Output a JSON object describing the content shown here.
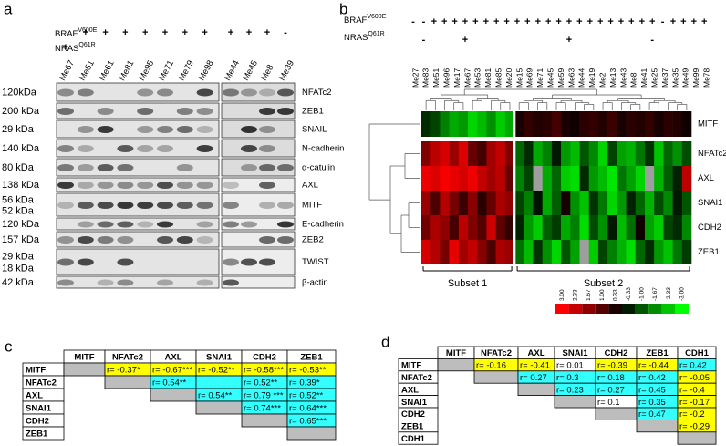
{
  "panel_a": {
    "label": "a",
    "braf": {
      "name": "BRAF",
      "sup": "V600E"
    },
    "nras": {
      "name": "NRAS",
      "sup": "Q61R"
    },
    "left_samples": [
      {
        "name": "Me67",
        "braf": null,
        "nras": "+"
      },
      {
        "name": "Me51",
        "braf": "+",
        "nras": null
      },
      {
        "name": "Me61",
        "braf": "+",
        "nras": null
      },
      {
        "name": "Me81",
        "braf": "+",
        "nras": null
      },
      {
        "name": "Me95",
        "braf": "+",
        "nras": null
      },
      {
        "name": "Me71",
        "braf": "+",
        "nras": null
      },
      {
        "name": "Me79",
        "braf": "+",
        "nras": null
      },
      {
        "name": "Me98",
        "braf": "+",
        "nras": null
      }
    ],
    "right_samples": [
      {
        "name": "Me44",
        "braf": "+",
        "nras": null
      },
      {
        "name": "Me45",
        "braf": "+",
        "nras": null
      },
      {
        "name": "Me8",
        "braf": "+",
        "nras": null
      },
      {
        "name": "Me39",
        "braf": "-",
        "nras": null
      }
    ],
    "rows": [
      {
        "kda": [
          "120kDa"
        ],
        "protein": "NFATc2"
      },
      {
        "kda": [
          "200 kDa"
        ],
        "protein": "ZEB1"
      },
      {
        "kda": [
          "29 kDa"
        ],
        "protein": "SNAIL"
      },
      {
        "kda": [
          "140 kDa"
        ],
        "protein": "N-cadherin"
      },
      {
        "kda": [
          "80 kDa"
        ],
        "protein": "α-catulin"
      },
      {
        "kda": [
          "138 kDa"
        ],
        "protein": "AXL"
      },
      {
        "kda": [
          "56 kDa",
          "52 kDa"
        ],
        "protein": "MITF"
      },
      {
        "kda": [
          "120 kDa"
        ],
        "protein": "E-cadherin"
      },
      {
        "kda": [
          "157 kDa"
        ],
        "protein": "ZEB2"
      },
      {
        "kda": [
          "29 kDa",
          "18 kDa"
        ],
        "protein": "TWIST"
      },
      {
        "kda": [
          "42 kDa"
        ],
        "protein": "β-actin"
      }
    ]
  },
  "panel_b": {
    "label": "b",
    "braf": {
      "name": "BRAF",
      "sup": "V600E"
    },
    "nras": {
      "name": "NRAS",
      "sup": "Q61R"
    },
    "samples": [
      {
        "name": "Me27",
        "braf": "-",
        "nras": null
      },
      {
        "name": "Me83",
        "braf": "-",
        "nras": "-"
      },
      {
        "name": "Me51",
        "braf": "+",
        "nras": null
      },
      {
        "name": "Me96",
        "braf": "+",
        "nras": null
      },
      {
        "name": "Me17",
        "braf": "+",
        "nras": null
      },
      {
        "name": "Me67",
        "braf": "+",
        "nras": "+"
      },
      {
        "name": "Me53",
        "braf": "+",
        "nras": null
      },
      {
        "name": "Me81",
        "braf": "+",
        "nras": null
      },
      {
        "name": "Me85",
        "braf": "+",
        "nras": null
      },
      {
        "name": "Me20",
        "braf": "+",
        "nras": null
      },
      {
        "name": "Me15",
        "braf": "+",
        "nras": null
      },
      {
        "name": "Me69",
        "braf": "+",
        "nras": null
      },
      {
        "name": "Me71",
        "braf": "+",
        "nras": null
      },
      {
        "name": "Me45",
        "braf": "+",
        "nras": null
      },
      {
        "name": "Me59",
        "braf": "+",
        "nras": null
      },
      {
        "name": "Me63",
        "braf": "+",
        "nras": "+"
      },
      {
        "name": "Me44",
        "braf": "+",
        "nras": null
      },
      {
        "name": "Me19",
        "braf": "+",
        "nras": null
      },
      {
        "name": "Me2",
        "braf": "+",
        "nras": null
      },
      {
        "name": "Me13",
        "braf": "+",
        "nras": null
      },
      {
        "name": "Me43",
        "braf": "+",
        "nras": null
      },
      {
        "name": "Me8",
        "braf": "+",
        "nras": null
      },
      {
        "name": "Me41",
        "braf": "+",
        "nras": null
      },
      {
        "name": "Me25",
        "braf": "+",
        "nras": "-"
      },
      {
        "name": "Me37",
        "braf": "-",
        "nras": null
      },
      {
        "name": "Me35",
        "braf": "+",
        "nras": null
      },
      {
        "name": "Me49",
        "braf": "+",
        "nras": null
      },
      {
        "name": "Me99",
        "braf": "+",
        "nras": null
      },
      {
        "name": "Me78",
        "braf": "+",
        "nras": null
      }
    ],
    "genes": [
      "MITF",
      "NFATc2",
      "AXL",
      "SNAI1",
      "CDH2",
      "ZEB1"
    ],
    "values": [
      [
        -0.5,
        -0.8,
        -1.5,
        -2,
        -1.8,
        -2.5,
        -2.2,
        -1.7,
        -2.4,
        -2,
        0.3,
        0.6,
        0.4,
        0.5,
        0.8,
        0.3,
        0.2,
        0.5,
        0.6,
        0.4,
        0.7,
        0.3,
        0.5,
        0.4,
        0.6,
        0.3,
        0.5,
        0.4,
        0.2
      ],
      [
        1.5,
        2.2,
        2.5,
        1.8,
        2.6,
        1.2,
        0.8,
        1.9,
        2.3,
        1.5,
        -1.2,
        -0.5,
        -2,
        -1.5,
        -0.3,
        -1.8,
        -2.2,
        -1,
        -1.6,
        -2.5,
        -0.8,
        -1.9,
        -2.1,
        -1.4,
        -0.6,
        -2.3,
        -1.2,
        -1.7,
        -0.9
      ],
      [
        2.8,
        2.6,
        2.9,
        2.7,
        2.5,
        2.8,
        2.3,
        1.9,
        2.2,
        1.2,
        -1.5,
        -0.8,
        null,
        -2,
        -1.2,
        -2.4,
        -2.6,
        -0.5,
        -1.8,
        -2.2,
        -2.7,
        -1.4,
        -1.9,
        -2.5,
        null,
        -2.1,
        -1.1,
        -0.4,
        2.2
      ],
      [
        1.8,
        0.9,
        2.1,
        1.4,
        0.7,
        1.6,
        0.5,
        1.2,
        2,
        1.7,
        -0.8,
        -1.5,
        -0.2,
        -2,
        -1.1,
        0.3,
        -1.7,
        -2.3,
        -0.6,
        -1.4,
        -2.5,
        -1.8,
        -0.4,
        -1.2,
        -2.1,
        -0.9,
        -1.6,
        -0.3,
        -1
      ],
      [
        1.3,
        2,
        1.7,
        0.8,
        2.2,
        1.5,
        1,
        2.4,
        1.1,
        0.6,
        -0.4,
        -1.8,
        -2.4,
        -1.1,
        -0.7,
        -2,
        -1.5,
        -2.6,
        -0.9,
        -1.7,
        -0.3,
        -2.2,
        -1.3,
        0.2,
        -1.9,
        -2.4,
        -0.8,
        -0.5,
        -1.6
      ],
      [
        2.5,
        2.1,
        1.4,
        2.7,
        1.9,
        2.3,
        1.6,
        0.9,
        2,
        1.8,
        -1.3,
        -2.2,
        -0.6,
        -1.7,
        -2.5,
        -1,
        -1.9,
        null,
        -2.4,
        -0.8,
        -1.5,
        -2.1,
        -2.6,
        -1.2,
        -0.5,
        -1.8,
        -2.3,
        -1.4,
        -0.7
      ]
    ],
    "subsets": [
      "Subset 1",
      "Subset 2"
    ],
    "scale": [
      {
        "value": 3,
        "label": "3.00"
      },
      {
        "value": 2.33,
        "label": "2.33"
      },
      {
        "value": 1.67,
        "label": "1.67"
      },
      {
        "value": 1,
        "label": "1.00"
      },
      {
        "value": 0.33,
        "label": "0.33"
      },
      {
        "value": -0.33,
        "label": "-0.33"
      },
      {
        "value": -1,
        "label": "-1.00"
      },
      {
        "value": -1.67,
        "label": "-1.67"
      },
      {
        "value": -2.33,
        "label": "-2.33"
      },
      {
        "value": -3,
        "label": "-3.00"
      }
    ]
  },
  "panel_c": {
    "label": "c",
    "columns": [
      "MITF",
      "NFATc2",
      "AXL",
      "SNAI1",
      "CDH2",
      "ZEB1"
    ],
    "rows": [
      {
        "name": "MITF",
        "cells": [
          {
            "text": "r= -0.37*",
            "highlight": "#ffff00"
          },
          {
            "text": "r= -0.67***",
            "highlight": "#ffff00"
          },
          {
            "text": "r= -0.52**",
            "highlight": "#ffff00"
          },
          {
            "text": "r= -0.58***",
            "highlight": "#ffff00"
          },
          {
            "text": "r= -0.53**",
            "highlight": "#ffff00"
          }
        ]
      },
      {
        "name": "NFATc2",
        "cells": [
          {
            "text": "r= 0.54**",
            "highlight": "#33ffff"
          },
          {
            "highlight": "#33ffff"
          },
          {
            "text": "r= 0.52**",
            "highlight": "#33ffff"
          },
          {
            "text": "r= 0.39*",
            "highlight": "#33ffff"
          }
        ]
      },
      {
        "name": "AXL",
        "cells": [
          {
            "text": "r= 0.54**",
            "highlight": "#33ffff"
          },
          {
            "text": "r= 0.79 ***",
            "highlight": "#33ffff"
          },
          {
            "text": "r= 0.52**",
            "highlight": "#33ffff"
          }
        ]
      },
      {
        "name": "SNAI1",
        "cells": [
          {
            "text": "r= 0.74***",
            "highlight": "#33ffff"
          },
          {
            "text": "r= 0.64***",
            "highlight": "#33ffff"
          }
        ]
      },
      {
        "name": "CDH2",
        "cells": [
          {
            "text": "r= 0.65***",
            "highlight": "#33ffff"
          }
        ]
      },
      {
        "name": "ZEB1",
        "cells": []
      }
    ]
  },
  "panel_d": {
    "label": "d",
    "columns": [
      "MITF",
      "NFATc2",
      "AXL",
      "SNAI1",
      "CDH2",
      "ZEB1",
      "CDH1"
    ],
    "rows": [
      {
        "name": "MITF",
        "cells": [
          {
            "text": "r= -0.16",
            "highlight": "#ffff00"
          },
          {
            "text": "r= -0.41",
            "highlight": "#ffff00"
          },
          {
            "text": "r= 0.01",
            "highlight": "#ffffff"
          },
          {
            "text": "r= -0.39",
            "highlight": "#ffff00"
          },
          {
            "text": "r= -0.44",
            "highlight": "#ffff00"
          },
          {
            "text": "r= 0.42",
            "highlight": "#33ffff"
          }
        ]
      },
      {
        "name": "NFATc2",
        "cells": [
          {
            "text": "r= 0.27",
            "highlight": "#33ffff"
          },
          {
            "text": "r= 0.3",
            "highlight": "#33ffff"
          },
          {
            "text": "r= 0.18",
            "highlight": "#33ffff"
          },
          {
            "text": "r= 0.42",
            "highlight": "#33ffff"
          },
          {
            "text": "r= -0.05",
            "highlight": "#ffff00"
          }
        ]
      },
      {
        "name": "AXL",
        "cells": [
          {
            "text": "r= 0.23",
            "highlight": "#33ffff"
          },
          {
            "text": "r= 0.27",
            "highlight": "#33ffff"
          },
          {
            "text": "r= 0.45",
            "highlight": "#33ffff"
          },
          {
            "text": "r= -0.4",
            "highlight": "#ffff00"
          }
        ]
      },
      {
        "name": "SNAI1",
        "cells": [
          {
            "text": "r= 0.1",
            "highlight": "#ffffff"
          },
          {
            "text": "r= 0.35",
            "highlight": "#33ffff"
          },
          {
            "text": "r= -0.17",
            "highlight": "#ffff00"
          }
        ]
      },
      {
        "name": "CDH2",
        "cells": [
          {
            "text": "r= 0.47",
            "highlight": "#33ffff"
          },
          {
            "text": "r= -0.2",
            "highlight": "#ffff00"
          }
        ]
      },
      {
        "name": "ZEB1",
        "cells": [
          {
            "text": "r= -0.29",
            "highlight": "#ffff00"
          }
        ]
      },
      {
        "name": "CDH1",
        "cells": []
      }
    ]
  }
}
